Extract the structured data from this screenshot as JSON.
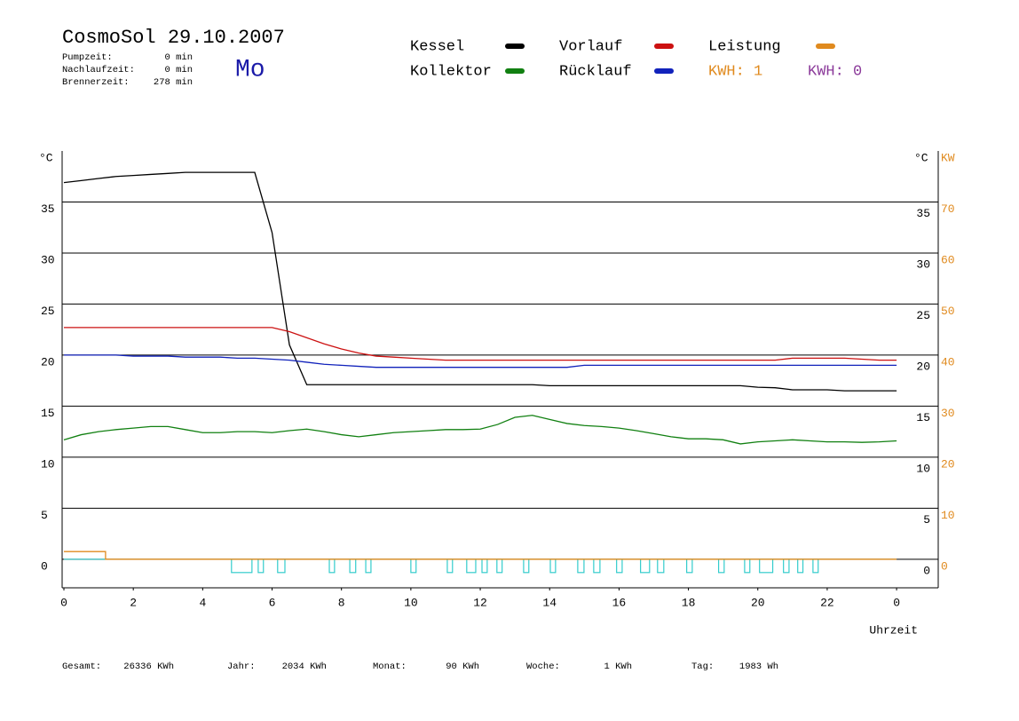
{
  "chart_data": {
    "type": "line",
    "title": "CosmoSol 29.10.2007",
    "weekday": "Mo",
    "info": [
      {
        "label": "Pumpzeit:",
        "value": "0 min"
      },
      {
        "label": "Nachlaufzeit:",
        "value": "0 min"
      },
      {
        "label": "Brennerzeit:",
        "value": "278 min"
      }
    ],
    "kwh_labels": [
      {
        "text": "KWH: 1",
        "color": "#e08a1e"
      },
      {
        "text": "KWH: 0",
        "color": "#8b3a9a"
      }
    ],
    "x_label": "Uhrzeit",
    "y_unit": "°C",
    "y2_unit": "KW",
    "xlim": [
      0,
      25.2
    ],
    "xticks": [
      0,
      2,
      4,
      6,
      8,
      10,
      12,
      14,
      16,
      18,
      20,
      22,
      {
        "value": 24,
        "label": "0"
      }
    ],
    "ylim": [
      -2.8,
      40
    ],
    "yticks": [
      0,
      5,
      10,
      15,
      20,
      25,
      30,
      35
    ],
    "y2lim": [
      -5.6,
      80
    ],
    "y2ticks": [
      0,
      10,
      20,
      30,
      40,
      50,
      60,
      70
    ],
    "grid": true,
    "x": [
      0,
      0.5,
      1,
      1.5,
      2,
      2.5,
      3,
      3.5,
      4,
      4.5,
      5,
      5.5,
      6,
      6.5,
      7,
      7.5,
      8,
      8.5,
      9,
      9.5,
      10,
      10.5,
      11,
      11.5,
      12,
      12.5,
      13,
      13.5,
      14,
      14.5,
      15,
      15.5,
      16,
      16.5,
      17,
      17.5,
      18,
      18.5,
      19,
      19.5,
      20,
      20.5,
      21,
      21.5,
      22,
      22.5,
      23,
      23.5,
      24
    ],
    "series": [
      {
        "name": "Kessel",
        "color": "#000000",
        "values": [
          36.9,
          37.1,
          37.3,
          37.5,
          37.6,
          37.7,
          37.8,
          37.9,
          37.9,
          37.9,
          37.9,
          37.9,
          32,
          21,
          17.1,
          17.1,
          17.1,
          17.1,
          17.1,
          17.1,
          17.1,
          17.1,
          17.1,
          17.1,
          17.1,
          17.1,
          17.1,
          17.1,
          17.0,
          17.0,
          17.0,
          17.0,
          17.0,
          17.0,
          17.0,
          17.0,
          17.0,
          17.0,
          17.0,
          17.0,
          16.85,
          16.8,
          16.6,
          16.6,
          16.6,
          16.5,
          16.5,
          16.5,
          16.5
        ]
      },
      {
        "name": "Kollektor",
        "color": "#118011",
        "values": [
          11.7,
          12.2,
          12.5,
          12.7,
          12.85,
          13.0,
          13.0,
          12.7,
          12.4,
          12.4,
          12.5,
          12.5,
          12.4,
          12.6,
          12.75,
          12.5,
          12.2,
          12.0,
          12.2,
          12.4,
          12.5,
          12.6,
          12.7,
          12.7,
          12.75,
          13.2,
          13.9,
          14.1,
          13.7,
          13.3,
          13.1,
          13.0,
          12.85,
          12.6,
          12.3,
          12.0,
          11.8,
          11.8,
          11.7,
          11.3,
          11.5,
          11.6,
          11.7,
          11.6,
          11.5,
          11.5,
          11.45,
          11.5,
          11.6
        ]
      },
      {
        "name": "Vorlauf",
        "color": "#cc1111",
        "values": [
          22.7,
          22.7,
          22.7,
          22.7,
          22.7,
          22.7,
          22.7,
          22.7,
          22.7,
          22.7,
          22.7,
          22.7,
          22.7,
          22.3,
          21.7,
          21.1,
          20.6,
          20.2,
          19.9,
          19.8,
          19.7,
          19.6,
          19.5,
          19.5,
          19.5,
          19.5,
          19.5,
          19.5,
          19.5,
          19.5,
          19.5,
          19.5,
          19.5,
          19.5,
          19.5,
          19.5,
          19.5,
          19.5,
          19.5,
          19.5,
          19.5,
          19.5,
          19.7,
          19.7,
          19.7,
          19.7,
          19.6,
          19.5,
          19.5
        ]
      },
      {
        "name": "Rücklauf",
        "color": "#1122bb",
        "values": [
          20.0,
          20.0,
          20.0,
          20.0,
          19.9,
          19.9,
          19.9,
          19.8,
          19.8,
          19.8,
          19.7,
          19.7,
          19.6,
          19.5,
          19.3,
          19.1,
          19.0,
          18.9,
          18.8,
          18.8,
          18.8,
          18.8,
          18.8,
          18.8,
          18.8,
          18.8,
          18.8,
          18.8,
          18.8,
          18.8,
          19.0,
          19.0,
          19.0,
          19.0,
          19.0,
          19.0,
          19.0,
          19.0,
          19.0,
          19.0,
          19.0,
          19.0,
          19.0,
          19.0,
          19.0,
          19.0,
          19.0,
          19.0,
          19.0
        ]
      },
      {
        "name": "Leistung",
        "color": "#e08a1e",
        "axis": "y2",
        "x": [
          0,
          1.2,
          1.2,
          24
        ],
        "values": [
          1.5,
          1.5,
          0,
          0
        ]
      }
    ],
    "pump": {
      "color": "#33cccc",
      "intervals": [
        [
          4.83,
          5.42
        ],
        [
          5.6,
          5.75
        ],
        [
          6.16,
          6.37
        ],
        [
          7.65,
          7.8
        ],
        [
          8.24,
          8.41
        ],
        [
          8.7,
          8.85
        ],
        [
          10.0,
          10.15
        ],
        [
          11.05,
          11.2
        ],
        [
          11.61,
          11.87
        ],
        [
          12.05,
          12.2
        ],
        [
          12.48,
          12.63
        ],
        [
          13.25,
          13.4
        ],
        [
          14.02,
          14.17
        ],
        [
          14.81,
          14.99
        ],
        [
          15.27,
          15.45
        ],
        [
          15.93,
          16.09
        ],
        [
          16.62,
          16.88
        ],
        [
          17.11,
          17.29
        ],
        [
          17.95,
          18.11
        ],
        [
          18.87,
          19.03
        ],
        [
          19.62,
          19.77
        ],
        [
          20.05,
          20.43
        ],
        [
          20.74,
          20.9
        ],
        [
          21.15,
          21.3
        ],
        [
          21.59,
          21.74
        ]
      ]
    },
    "totals": [
      {
        "label": "Gesamt:",
        "value": "26336 KWh"
      },
      {
        "label": "Jahr:",
        "value": "2034 KWh"
      },
      {
        "label": "Monat:",
        "value": "90 KWh"
      },
      {
        "label": "Woche:",
        "value": "1 KWh"
      },
      {
        "label": "Tag:",
        "value": "1983 Wh"
      }
    ]
  }
}
